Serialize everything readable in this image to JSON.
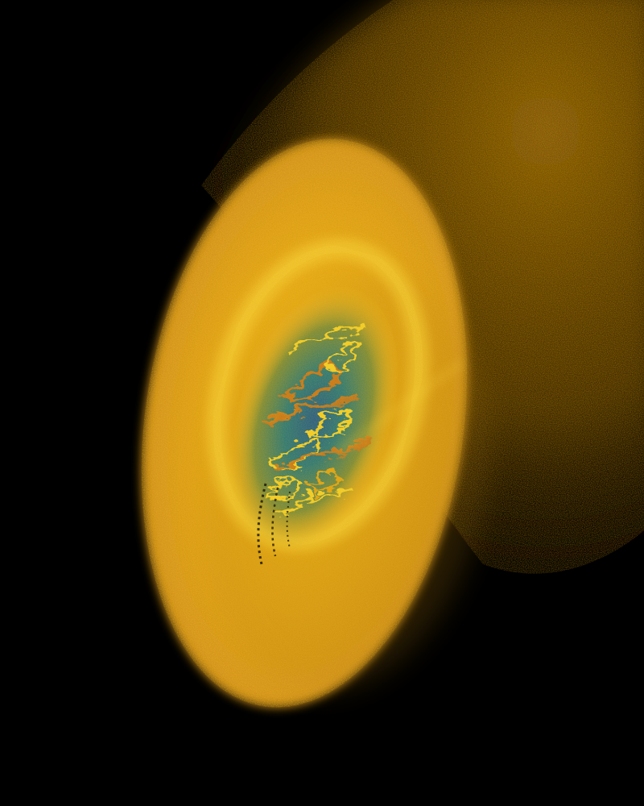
{
  "image": {
    "kind": "fractal-render",
    "subject": "glowing-ellipsoid-funnel",
    "palette": {
      "background": "#000000",
      "outer_glow": "#d99a10",
      "outer_rim": "#e0a516",
      "body": "#d8a01a",
      "bright_ring": "#f0c424",
      "inner_gold": "#f2c92a",
      "inner_teal": "#2f7a78",
      "inner_blue": "#2a5f86",
      "inner_orange": "#c8791d"
    }
  }
}
